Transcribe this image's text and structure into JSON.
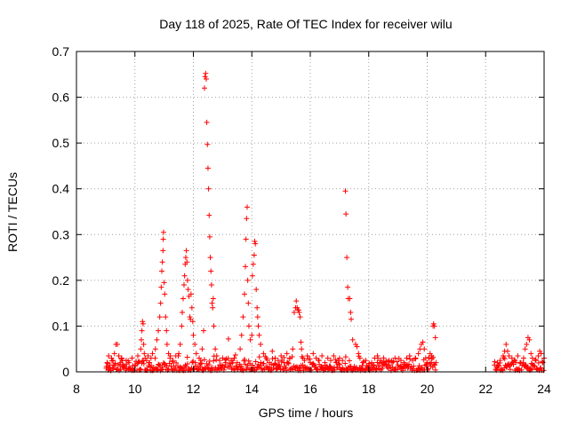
{
  "chart_data": {
    "type": "scatter",
    "title": "Day 118 of 2025, Rate Of TEC Index for receiver wilu",
    "xlabel": "GPS time / hours",
    "ylabel": "ROTI / TECUs",
    "xlim": [
      8,
      24
    ],
    "ylim": [
      0,
      0.7
    ],
    "x_ticks": [
      8,
      10,
      12,
      14,
      16,
      18,
      20,
      22,
      24
    ],
    "x_tick_labels": [
      "8",
      "10",
      "12",
      "14",
      "16",
      "18",
      "20",
      "22",
      "24"
    ],
    "y_ticks": [
      0,
      0.1,
      0.2,
      0.3,
      0.4,
      0.5,
      0.6,
      0.7
    ],
    "y_tick_labels": [
      "0",
      "0.1",
      "0.2",
      "0.3",
      "0.4",
      "0.5",
      "0.6",
      "0.7"
    ],
    "grid": true,
    "marker": "plus",
    "color": "#ff0000",
    "series": [
      {
        "name": "ROTI",
        "points": [
          [
            9.05,
            0.02
          ],
          [
            9.1,
            0.035
          ],
          [
            9.15,
            0.015
          ],
          [
            9.2,
            0.03
          ],
          [
            9.25,
            0.025
          ],
          [
            9.3,
            0.04
          ],
          [
            9.35,
            0.06
          ],
          [
            9.4,
            0.06
          ],
          [
            9.45,
            0.035
          ],
          [
            9.5,
            0.02
          ],
          [
            9.55,
            0.03
          ],
          [
            9.6,
            0.015
          ],
          [
            9.7,
            0.025
          ],
          [
            9.8,
            0.02
          ],
          [
            9.9,
            0.03
          ],
          [
            10.0,
            0.015
          ],
          [
            10.1,
            0.035
          ],
          [
            10.2,
            0.05
          ],
          [
            10.22,
            0.07
          ],
          [
            10.24,
            0.09
          ],
          [
            10.26,
            0.11
          ],
          [
            10.28,
            0.105
          ],
          [
            10.3,
            0.06
          ],
          [
            10.32,
            0.04
          ],
          [
            10.35,
            0.03
          ],
          [
            10.4,
            0.025
          ],
          [
            10.45,
            0.035
          ],
          [
            10.5,
            0.02
          ],
          [
            10.55,
            0.03
          ],
          [
            10.6,
            0.04
          ],
          [
            10.7,
            0.05
          ],
          [
            10.75,
            0.07
          ],
          [
            10.8,
            0.09
          ],
          [
            10.85,
            0.12
          ],
          [
            10.88,
            0.15
          ],
          [
            10.9,
            0.185
          ],
          [
            10.92,
            0.22
          ],
          [
            10.94,
            0.24
          ],
          [
            10.96,
            0.265
          ],
          [
            10.97,
            0.29
          ],
          [
            10.98,
            0.305
          ],
          [
            11.0,
            0.195
          ],
          [
            11.02,
            0.17
          ],
          [
            11.05,
            0.12
          ],
          [
            11.08,
            0.09
          ],
          [
            11.1,
            0.06
          ],
          [
            11.15,
            0.04
          ],
          [
            11.2,
            0.03
          ],
          [
            11.3,
            0.025
          ],
          [
            11.4,
            0.035
          ],
          [
            11.5,
            0.04
          ],
          [
            11.55,
            0.06
          ],
          [
            11.6,
            0.1
          ],
          [
            11.62,
            0.13
          ],
          [
            11.65,
            0.16
          ],
          [
            11.68,
            0.19
          ],
          [
            11.7,
            0.21
          ],
          [
            11.72,
            0.235
          ],
          [
            11.74,
            0.25
          ],
          [
            11.76,
            0.265
          ],
          [
            11.78,
            0.24
          ],
          [
            11.8,
            0.2
          ],
          [
            11.82,
            0.18
          ],
          [
            11.85,
            0.165
          ],
          [
            11.88,
            0.12
          ],
          [
            11.9,
            0.115
          ],
          [
            11.92,
            0.17
          ],
          [
            11.95,
            0.14
          ],
          [
            11.98,
            0.11
          ],
          [
            12.0,
            0.08
          ],
          [
            12.05,
            0.06
          ],
          [
            12.1,
            0.04
          ],
          [
            12.2,
            0.03
          ],
          [
            12.25,
            0.025
          ],
          [
            12.3,
            0.05
          ],
          [
            12.35,
            0.09
          ],
          [
            12.38,
            0.62
          ],
          [
            12.4,
            0.645
          ],
          [
            12.42,
            0.652
          ],
          [
            12.44,
            0.64
          ],
          [
            12.46,
            0.545
          ],
          [
            12.48,
            0.497
          ],
          [
            12.5,
            0.445
          ],
          [
            12.52,
            0.4
          ],
          [
            12.54,
            0.342
          ],
          [
            12.56,
            0.295
          ],
          [
            12.58,
            0.25
          ],
          [
            12.6,
            0.22
          ],
          [
            12.62,
            0.19
          ],
          [
            12.64,
            0.15
          ],
          [
            12.66,
            0.14
          ],
          [
            12.68,
            0.16
          ],
          [
            12.7,
            0.1
          ],
          [
            12.75,
            0.05
          ],
          [
            12.8,
            0.035
          ],
          [
            12.9,
            0.025
          ],
          [
            13.0,
            0.03
          ],
          [
            13.1,
            0.02
          ],
          [
            13.2,
            0.072
          ],
          [
            13.3,
            0.025
          ],
          [
            13.4,
            0.03
          ],
          [
            13.5,
            0.02
          ],
          [
            13.6,
            0.05
          ],
          [
            13.65,
            0.08
          ],
          [
            13.7,
            0.12
          ],
          [
            13.75,
            0.17
          ],
          [
            13.78,
            0.23
          ],
          [
            13.8,
            0.29
          ],
          [
            13.82,
            0.335
          ],
          [
            13.84,
            0.36
          ],
          [
            13.86,
            0.2
          ],
          [
            13.88,
            0.15
          ],
          [
            13.9,
            0.1
          ],
          [
            13.95,
            0.07
          ],
          [
            14.0,
            0.08
          ],
          [
            14.02,
            0.21
          ],
          [
            14.05,
            0.235
          ],
          [
            14.08,
            0.255
          ],
          [
            14.1,
            0.285
          ],
          [
            14.12,
            0.28
          ],
          [
            14.15,
            0.18
          ],
          [
            14.18,
            0.14
          ],
          [
            14.2,
            0.12
          ],
          [
            14.22,
            0.1
          ],
          [
            14.25,
            0.08
          ],
          [
            14.3,
            0.06
          ],
          [
            14.4,
            0.04
          ],
          [
            14.5,
            0.03
          ],
          [
            14.6,
            0.02
          ],
          [
            14.7,
            0.045
          ],
          [
            14.8,
            0.03
          ],
          [
            14.9,
            0.025
          ],
          [
            15.0,
            0.035
          ],
          [
            15.1,
            0.02
          ],
          [
            15.2,
            0.04
          ],
          [
            15.3,
            0.03
          ],
          [
            15.4,
            0.05
          ],
          [
            15.45,
            0.13
          ],
          [
            15.5,
            0.14
          ],
          [
            15.52,
            0.155
          ],
          [
            15.55,
            0.14
          ],
          [
            15.58,
            0.135
          ],
          [
            15.6,
            0.135
          ],
          [
            15.62,
            0.13
          ],
          [
            15.65,
            0.12
          ],
          [
            15.68,
            0.065
          ],
          [
            15.7,
            0.05
          ],
          [
            15.75,
            0.03
          ],
          [
            15.8,
            0.025
          ],
          [
            15.9,
            0.035
          ],
          [
            16.0,
            0.02
          ],
          [
            16.1,
            0.04
          ],
          [
            16.2,
            0.03
          ],
          [
            16.3,
            0.025
          ],
          [
            16.4,
            0.035
          ],
          [
            16.5,
            0.02
          ],
          [
            16.6,
            0.03
          ],
          [
            16.7,
            0.025
          ],
          [
            16.8,
            0.035
          ],
          [
            16.9,
            0.02
          ],
          [
            17.0,
            0.03
          ],
          [
            17.1,
            0.025
          ],
          [
            17.2,
            0.395
          ],
          [
            17.22,
            0.345
          ],
          [
            17.25,
            0.25
          ],
          [
            17.28,
            0.185
          ],
          [
            17.3,
            0.16
          ],
          [
            17.35,
            0.16
          ],
          [
            17.38,
            0.13
          ],
          [
            17.4,
            0.115
          ],
          [
            17.45,
            0.07
          ],
          [
            17.55,
            0.06
          ],
          [
            17.6,
            0.055
          ],
          [
            17.65,
            0.04
          ],
          [
            17.7,
            0.03
          ],
          [
            17.8,
            0.02
          ],
          [
            17.9,
            0.025
          ],
          [
            18.0,
            0.015
          ],
          [
            18.1,
            0.02
          ],
          [
            18.2,
            0.03
          ],
          [
            18.3,
            0.035
          ],
          [
            18.4,
            0.025
          ],
          [
            18.5,
            0.02
          ],
          [
            18.6,
            0.015
          ],
          [
            18.7,
            0.025
          ],
          [
            18.8,
            0.02
          ],
          [
            18.9,
            0.03
          ],
          [
            19.0,
            0.015
          ],
          [
            19.1,
            0.025
          ],
          [
            19.2,
            0.02
          ],
          [
            19.3,
            0.03
          ],
          [
            19.4,
            0.035
          ],
          [
            19.5,
            0.025
          ],
          [
            19.6,
            0.03
          ],
          [
            19.7,
            0.04
          ],
          [
            19.75,
            0.05
          ],
          [
            19.8,
            0.06
          ],
          [
            19.85,
            0.065
          ],
          [
            19.9,
            0.05
          ],
          [
            19.95,
            0.03
          ],
          [
            20.0,
            0.02
          ],
          [
            20.05,
            0.03
          ],
          [
            20.1,
            0.04
          ],
          [
            20.15,
            0.035
          ],
          [
            20.2,
            0.1
          ],
          [
            20.22,
            0.105
          ],
          [
            20.25,
            0.1
          ],
          [
            20.28,
            0.075
          ],
          [
            20.3,
            0.02
          ],
          [
            22.3,
            0.015
          ],
          [
            22.4,
            0.02
          ],
          [
            22.5,
            0.025
          ],
          [
            22.6,
            0.035
          ],
          [
            22.65,
            0.045
          ],
          [
            22.7,
            0.06
          ],
          [
            22.75,
            0.045
          ],
          [
            22.8,
            0.035
          ],
          [
            22.9,
            0.03
          ],
          [
            23.0,
            0.025
          ],
          [
            23.1,
            0.035
          ],
          [
            23.2,
            0.02
          ],
          [
            23.3,
            0.03
          ],
          [
            23.35,
            0.05
          ],
          [
            23.4,
            0.06
          ],
          [
            23.45,
            0.075
          ],
          [
            23.5,
            0.07
          ],
          [
            23.55,
            0.04
          ],
          [
            23.6,
            0.03
          ],
          [
            23.7,
            0.025
          ],
          [
            23.8,
            0.035
          ],
          [
            23.85,
            0.045
          ],
          [
            23.9,
            0.04
          ],
          [
            23.95,
            0.02
          ],
          [
            24.0,
            0.03
          ]
        ]
      }
    ],
    "dense_band": {
      "note": "continuous low-level noise floor of many points",
      "segments": [
        [
          9.0,
          20.3,
          0.0,
          0.035
        ],
        [
          22.3,
          24.0,
          0.0,
          0.03
        ]
      ]
    }
  }
}
